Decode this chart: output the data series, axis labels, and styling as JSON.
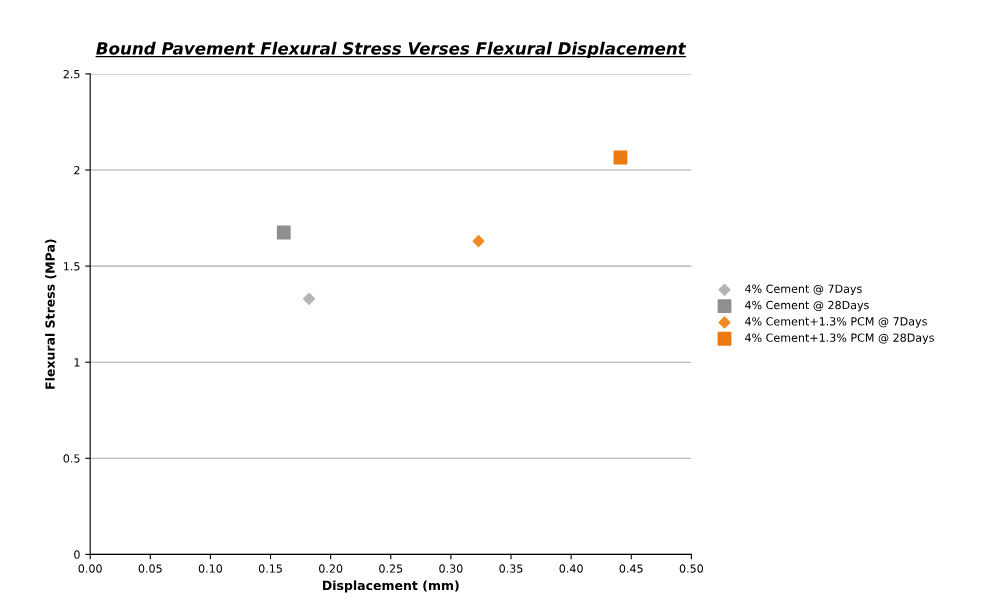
{
  "chart_data": {
    "type": "scatter",
    "title": "Bound Pavement Flexural Stress Verses Flexural Displacement",
    "xlabel": "Displacement (mm)",
    "ylabel": "Flexural Stress (MPa)",
    "series": [
      {
        "name": "4% Cement @ 7Days",
        "color": "#b4b4b4",
        "marker": "diamond",
        "x": [
          0.182
        ],
        "values": [
          1.33
        ]
      },
      {
        "name": "4% Cement @ 28Days",
        "color": "#8f8f8f",
        "marker": "square",
        "x": [
          0.161
        ],
        "values": [
          1.675
        ]
      },
      {
        "name": "4% Cement+1.3% PCM @ 7Days",
        "color": "#f08a24",
        "marker": "diamond",
        "x": [
          0.323
        ],
        "values": [
          1.63
        ]
      },
      {
        "name": "4% Cement+1.3% PCM @ 28Days",
        "color": "#ec7a10",
        "marker": "square",
        "x": [
          0.441
        ],
        "values": [
          2.065
        ]
      }
    ],
    "xlim": [
      0,
      0.5
    ],
    "xticks": [
      {
        "value": 0,
        "label": "0.00"
      },
      {
        "value": 0.05,
        "label": "0.05"
      },
      {
        "value": 0.1,
        "label": "0.10"
      },
      {
        "value": 0.15,
        "label": "0.15"
      },
      {
        "value": 0.2,
        "label": "0.20"
      },
      {
        "value": 0.25,
        "label": "0.25"
      },
      {
        "value": 0.3,
        "label": "0.30"
      },
      {
        "value": 0.35,
        "label": "0.35"
      },
      {
        "value": 0.4,
        "label": "0.40"
      },
      {
        "value": 0.45,
        "label": "0.45"
      },
      {
        "value": 0.5,
        "label": "0.50"
      }
    ],
    "ylim": [
      0,
      2.5
    ],
    "yticks": [
      0,
      0.5,
      1,
      1.5,
      2,
      2.5
    ],
    "grid": "y",
    "legend": "right"
  }
}
